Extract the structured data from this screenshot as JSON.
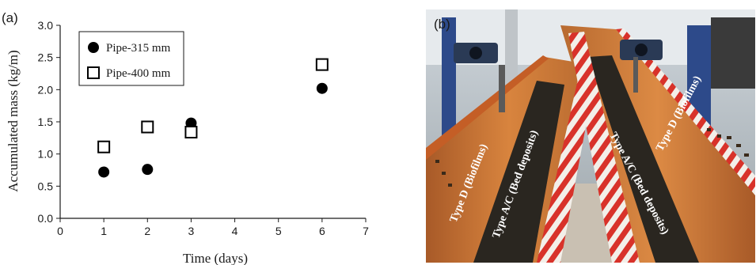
{
  "panel_a": {
    "label": "(a)"
  },
  "panel_b": {
    "label": "(b)",
    "annotations": [
      "Type D (Biofilms)",
      "Type A/C (Bed deposits)",
      "Type A/C (Bed deposits)",
      "Type D (Biofilms)"
    ],
    "colors": {
      "pipe_orange": "#d8783a",
      "deposit_dark": "#2a2620",
      "stripe_red": "#d8322a"
    }
  },
  "chart_data": {
    "type": "scatter",
    "xlabel": "Time (days)",
    "ylabel": "Accumulated mass (kg/m)",
    "xlim": [
      0,
      7
    ],
    "ylim": [
      0.0,
      3.0
    ],
    "xticks": [
      "0",
      "1",
      "2",
      "3",
      "4",
      "5",
      "6",
      "7"
    ],
    "yticks": [
      "0.0",
      "0.5",
      "1.0",
      "1.5",
      "2.0",
      "2.5",
      "3.0"
    ],
    "grid": false,
    "legend_position": "top-left",
    "series": [
      {
        "name": "Pipe-315 mm",
        "marker": "filled-circle",
        "color": "#000000",
        "points": [
          [
            1,
            0.72
          ],
          [
            2,
            0.76
          ],
          [
            3,
            1.48
          ],
          [
            6,
            2.02
          ]
        ]
      },
      {
        "name": "Pipe-400 mm",
        "marker": "open-square",
        "color": "#000000",
        "points": [
          [
            1,
            1.11
          ],
          [
            2,
            1.42
          ],
          [
            3,
            1.34
          ],
          [
            6,
            2.39
          ]
        ]
      }
    ]
  }
}
